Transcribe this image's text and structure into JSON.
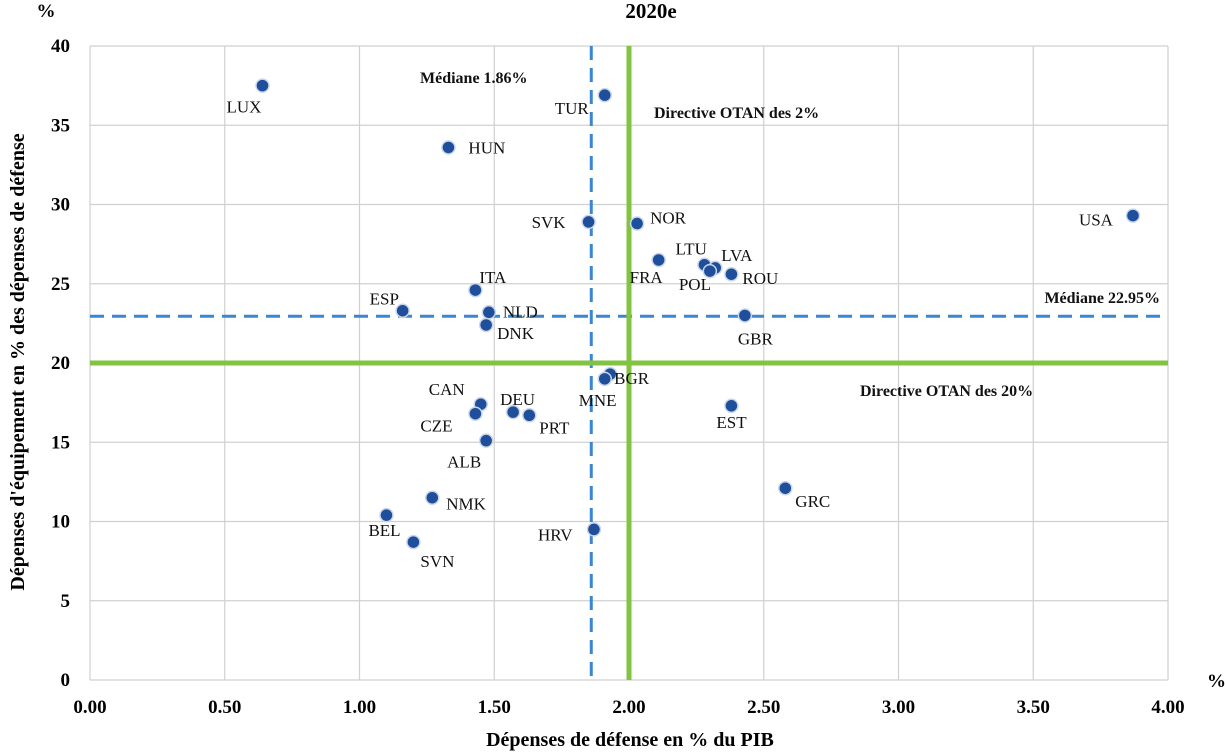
{
  "chart_data": {
    "type": "scatter",
    "title": "2020e",
    "xlabel": "Dépenses de défense en % du PIB",
    "ylabel": "Dépenses d'équipement en % des dépenses de défense",
    "x_unit": "%",
    "y_unit": "%",
    "xlim": [
      0,
      4
    ],
    "ylim": [
      0,
      40
    ],
    "x_ticks": [
      "0.00",
      "0.50",
      "1.00",
      "1.50",
      "2.00",
      "2.50",
      "3.00",
      "3.50",
      "4.00"
    ],
    "y_ticks": [
      "0",
      "5",
      "10",
      "15",
      "20",
      "25",
      "30",
      "35",
      "40"
    ],
    "grid": true,
    "points": [
      {
        "label": "LUX",
        "x": 0.64,
        "y": 37.5
      },
      {
        "label": "TUR",
        "x": 1.91,
        "y": 36.9
      },
      {
        "label": "HUN",
        "x": 1.33,
        "y": 33.6
      },
      {
        "label": "SVK",
        "x": 1.85,
        "y": 28.9
      },
      {
        "label": "NOR",
        "x": 2.03,
        "y": 28.8
      },
      {
        "label": "USA",
        "x": 3.87,
        "y": 29.3
      },
      {
        "label": "FRA",
        "x": 2.11,
        "y": 26.5
      },
      {
        "label": "LTU",
        "x": 2.28,
        "y": 26.2
      },
      {
        "label": "LVA",
        "x": 2.32,
        "y": 26.0
      },
      {
        "label": "POL",
        "x": 2.3,
        "y": 25.8
      },
      {
        "label": "ROU",
        "x": 2.38,
        "y": 25.6
      },
      {
        "label": "ITA",
        "x": 1.43,
        "y": 24.6
      },
      {
        "label": "ESP",
        "x": 1.16,
        "y": 23.3
      },
      {
        "label": "NLD",
        "x": 1.48,
        "y": 23.2
      },
      {
        "label": "GBR",
        "x": 2.43,
        "y": 23.0
      },
      {
        "label": "DNK",
        "x": 1.47,
        "y": 22.4
      },
      {
        "label": "BGR",
        "x": 1.93,
        "y": 19.3
      },
      {
        "label": "MNE",
        "x": 1.91,
        "y": 19.0
      },
      {
        "label": "CAN",
        "x": 1.45,
        "y": 17.4
      },
      {
        "label": "EST",
        "x": 2.38,
        "y": 17.3
      },
      {
        "label": "DEU",
        "x": 1.57,
        "y": 16.9
      },
      {
        "label": "CZE",
        "x": 1.43,
        "y": 16.8
      },
      {
        "label": "PRT",
        "x": 1.63,
        "y": 16.7
      },
      {
        "label": "ALB",
        "x": 1.47,
        "y": 15.1
      },
      {
        "label": "GRC",
        "x": 2.58,
        "y": 12.1
      },
      {
        "label": "NMK",
        "x": 1.27,
        "y": 11.5
      },
      {
        "label": "BEL",
        "x": 1.1,
        "y": 10.4
      },
      {
        "label": "HRV",
        "x": 1.87,
        "y": 9.5
      },
      {
        "label": "SVN",
        "x": 1.2,
        "y": 8.7
      }
    ],
    "reference_lines": [
      {
        "name": "median_x",
        "axis": "x",
        "value": 1.86,
        "style": "dashed",
        "color": "#3a86d0",
        "label": "Médiane 1.86%"
      },
      {
        "name": "median_y",
        "axis": "y",
        "value": 22.95,
        "style": "dashed",
        "color": "#3a86d0",
        "label": "Médiane 22.95%"
      },
      {
        "name": "nato_x",
        "axis": "x",
        "value": 2.0,
        "style": "solid",
        "color": "#82c341",
        "label": "Directive OTAN des 2%"
      },
      {
        "name": "nato_y",
        "axis": "y",
        "value": 20.0,
        "style": "solid",
        "color": "#82c341",
        "label": "Directive OTAN des 20%"
      }
    ],
    "colors": {
      "point": "#1f4e9a",
      "point_stroke": "#c9d6ea",
      "grid": "#d0d0d0"
    }
  }
}
